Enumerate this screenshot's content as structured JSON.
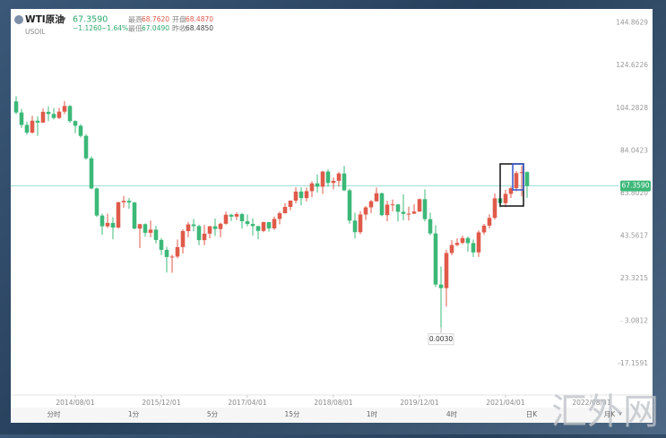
{
  "header": {
    "symbol": "WTI原油",
    "code": "USOIL",
    "price": "67.3590",
    "change": "−1.1260",
    "change_pct": "−1.64%",
    "stats": [
      {
        "label": "最高",
        "value": "68.7620"
      },
      {
        "label": "开盘",
        "value": "68.4870"
      },
      {
        "label": "最低",
        "value": "67.0490"
      },
      {
        "label": "昨收",
        "value": "68.4850"
      }
    ]
  },
  "toolbar": [
    "分时",
    "1分",
    "5分",
    "15分",
    "1时",
    "4时",
    "日K",
    "月K"
  ],
  "watermark": "汇外网",
  "chart_data": {
    "type": "candlestick",
    "up_color": "#e05a4a",
    "down_color": "#3cb878",
    "x": [
      "2013/09/01",
      "2013/10/01",
      "2013/11/01",
      "2013/12/01",
      "2014/01/01",
      "2014/02/01",
      "2014/03/01",
      "2014/04/01",
      "2014/05/01",
      "2014/06/01",
      "2014/07/01",
      "2014/08/01",
      "2014/09/01",
      "2014/10/01",
      "2014/11/01",
      "2014/12/01",
      "2015/01/01",
      "2015/02/01",
      "2015/03/01",
      "2015/04/01",
      "2015/05/01",
      "2015/06/01",
      "2015/07/01",
      "2015/08/01",
      "2015/09/01",
      "2015/10/01",
      "2015/11/01",
      "2015/12/01",
      "2016/01/01",
      "2016/02/01",
      "2016/03/01",
      "2016/04/01",
      "2016/05/01",
      "2016/06/01",
      "2016/07/01",
      "2016/08/01",
      "2016/09/01",
      "2016/10/01",
      "2016/11/01",
      "2016/12/01",
      "2017/01/01",
      "2017/02/01",
      "2017/03/01",
      "2017/04/01",
      "2017/05/01",
      "2017/06/01",
      "2017/07/01",
      "2017/08/01",
      "2017/09/01",
      "2017/10/01",
      "2017/11/01",
      "2017/12/01",
      "2018/01/01",
      "2018/02/01",
      "2018/03/01",
      "2018/04/01",
      "2018/05/01",
      "2018/06/01",
      "2018/07/01",
      "2018/08/01",
      "2018/09/01",
      "2018/10/01",
      "2018/11/01",
      "2018/12/01",
      "2019/01/01",
      "2019/02/01",
      "2019/03/01",
      "2019/04/01",
      "2019/05/01",
      "2019/06/01",
      "2019/07/01",
      "2019/08/01",
      "2019/09/01",
      "2019/10/01",
      "2019/11/01",
      "2019/12/01",
      "2020/01/01",
      "2020/02/01",
      "2020/03/01",
      "2020/04/01",
      "2020/05/01",
      "2020/06/01",
      "2020/07/01",
      "2020/08/01",
      "2020/09/01",
      "2020/10/01",
      "2020/11/01",
      "2020/12/01",
      "2021/01/01",
      "2021/02/01",
      "2021/03/01",
      "2021/04/01",
      "2021/05/01",
      "2021/06/01",
      "2021/07/01",
      "2021/08/01"
    ],
    "open": [
      107.6,
      102.3,
      96.4,
      92.7,
      98.4,
      97.5,
      102.6,
      101.6,
      99.7,
      102.7,
      105.4,
      98.2,
      96.0,
      91.2,
      80.5,
      66.2,
      53.3,
      48.2,
      49.8,
      47.6,
      59.6,
      60.3,
      59.5,
      47.1,
      49.2,
      45.1,
      46.6,
      41.7,
      37.0,
      33.6,
      33.8,
      38.3,
      45.9,
      49.1,
      48.3,
      41.6,
      44.7,
      48.2,
      46.9,
      49.4,
      53.7,
      52.8,
      54.0,
      50.6,
      49.3,
      48.3,
      46.0,
      50.2,
      47.2,
      51.7,
      54.4,
      57.4,
      60.4,
      64.7,
      61.6,
      64.9,
      68.6,
      67.0,
      74.2,
      68.8,
      69.8,
      73.3,
      65.3,
      50.9,
      45.4,
      53.8,
      57.2,
      60.1,
      63.9,
      53.5,
      58.5,
      58.6,
      55.1,
      54.1,
      54.2,
      55.2,
      61.1,
      51.6,
      44.8,
      20.5,
      18.8,
      35.5,
      39.3,
      40.3,
      42.6,
      40.2,
      35.8,
      45.3,
      48.5,
      52.2,
      61.5,
      59.2,
      63.6,
      66.3,
      73.5,
      73.95
    ],
    "high": [
      110.0,
      104.0,
      97.9,
      100.8,
      100.4,
      104.2,
      105.2,
      104.4,
      104.5,
      107.7,
      105.8,
      98.6,
      96.8,
      92.0,
      81.4,
      66.6,
      54.2,
      54.2,
      52.5,
      59.9,
      62.6,
      61.6,
      59.8,
      49.4,
      49.6,
      50.9,
      48.4,
      42.6,
      38.4,
      34.7,
      41.9,
      46.8,
      50.2,
      51.7,
      49.0,
      48.8,
      48.4,
      51.9,
      49.9,
      55.2,
      54.1,
      54.9,
      54.6,
      53.8,
      52.0,
      48.4,
      50.4,
      50.2,
      52.9,
      55.2,
      59.1,
      60.5,
      66.7,
      66.7,
      66.6,
      69.6,
      72.8,
      74.5,
      75.3,
      71.4,
      74.0,
      76.9,
      66.1,
      54.6,
      55.4,
      57.8,
      60.7,
      66.6,
      64.2,
      60.3,
      60.9,
      58.8,
      63.4,
      57.5,
      58.7,
      61.4,
      65.7,
      54.7,
      48.7,
      29.1,
      37.0,
      41.6,
      42.5,
      43.8,
      43.4,
      41.9,
      46.3,
      49.3,
      53.9,
      63.8,
      67.9,
      65.5,
      67.0,
      74.5,
      76.9,
      74.3
    ],
    "low": [
      101.5,
      95.0,
      91.8,
      92.4,
      91.2,
      97.4,
      98.2,
      99.0,
      99.2,
      101.6,
      97.4,
      92.5,
      90.4,
      79.8,
      65.7,
      52.6,
      44.2,
      47.4,
      42.0,
      47.1,
      57.0,
      56.5,
      46.7,
      37.8,
      43.2,
      43.0,
      40.0,
      34.5,
      26.2,
      26.1,
      33.0,
      35.2,
      43.0,
      45.8,
      39.2,
      39.2,
      42.5,
      43.6,
      43.0,
      49.0,
      50.7,
      51.2,
      47.1,
      48.2,
      43.8,
      42.1,
      45.4,
      45.6,
      46.5,
      49.1,
      54.2,
      55.8,
      59.1,
      58.1,
      60.0,
      62.0,
      64.2,
      63.6,
      67.0,
      65.7,
      67.0,
      64.9,
      49.4,
      42.4,
      44.4,
      51.2,
      54.5,
      59.8,
      53.0,
      50.6,
      55.3,
      50.5,
      51.0,
      50.9,
      54.0,
      55.0,
      50.5,
      44.0,
      19.3,
      0.003,
      10.1,
      34.4,
      38.7,
      39.7,
      36.1,
      33.6,
      33.6,
      44.2,
      47.2,
      51.4,
      57.2,
      57.3,
      61.6,
      64.8,
      62.4,
      61.7
    ],
    "close": [
      102.3,
      96.4,
      92.7,
      98.4,
      97.5,
      102.6,
      101.6,
      99.7,
      102.7,
      105.4,
      98.2,
      96.0,
      91.2,
      80.5,
      66.2,
      53.3,
      48.2,
      49.8,
      47.6,
      59.6,
      60.3,
      59.5,
      47.1,
      49.2,
      45.1,
      46.6,
      41.7,
      37.0,
      33.6,
      33.8,
      38.3,
      45.9,
      49.1,
      48.3,
      41.6,
      44.7,
      48.2,
      46.9,
      49.4,
      53.7,
      52.8,
      54.0,
      50.6,
      49.3,
      48.3,
      46.0,
      50.2,
      47.2,
      51.7,
      54.4,
      57.4,
      60.4,
      64.7,
      61.6,
      64.9,
      68.6,
      67.0,
      74.2,
      68.8,
      69.8,
      73.3,
      65.3,
      50.9,
      45.4,
      53.8,
      57.2,
      60.1,
      63.9,
      53.5,
      58.5,
      58.6,
      55.1,
      54.1,
      54.2,
      55.2,
      61.1,
      51.6,
      44.8,
      20.5,
      18.8,
      35.5,
      39.3,
      40.3,
      42.6,
      40.2,
      35.8,
      45.3,
      48.5,
      52.2,
      61.5,
      59.2,
      63.6,
      66.3,
      73.5,
      73.95,
      67.359
    ],
    "xlim": [
      "2013/08/01",
      "2023/01/01"
    ],
    "xticks": [
      "2014/08/01",
      "2015/12/01",
      "2017/04/01",
      "2018/08/01",
      "2019/12/01",
      "2021/04/01",
      "2022/08/01"
    ],
    "ylim": [
      -31.6,
      149.4
    ],
    "yticks": [
      -17.1591,
      3.0812,
      23.3215,
      43.5617,
      {
        "value": 63.802,
        "label": "63.8020"
      },
      84.0423,
      104.2828,
      124.6226,
      144.8629
    ],
    "last_price": {
      "value": 67.359,
      "label": "67.3590",
      "color": "#3cb878"
    },
    "annotation": {
      "x": "2020/04/01",
      "value": 0.003,
      "label": "0.0030"
    }
  }
}
